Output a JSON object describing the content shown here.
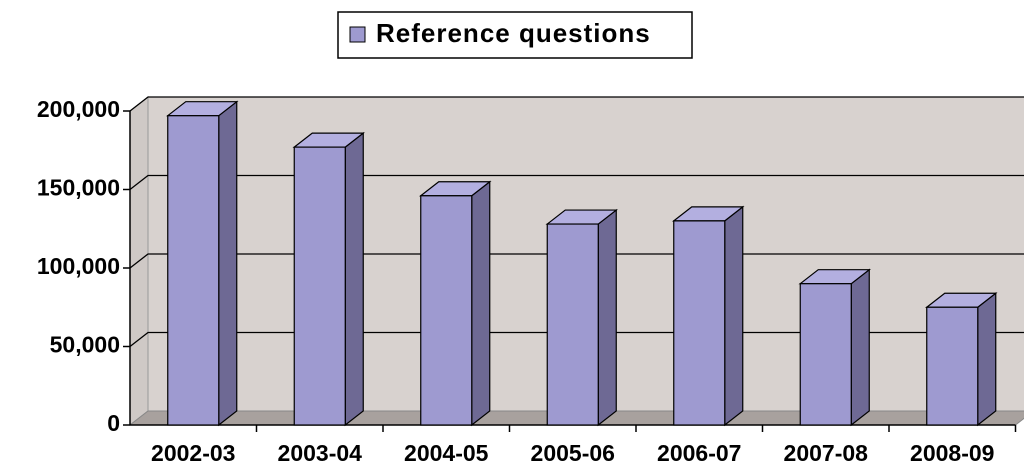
{
  "chart_data": {
    "type": "bar",
    "legend": "Reference questions",
    "categories": [
      "2002-03",
      "2003-04",
      "2004-05",
      "2005-06",
      "2006-07",
      "2007-08",
      "2008-09"
    ],
    "series": [
      {
        "name": "Reference questions",
        "color": "#9e9ad0",
        "values": [
          197000,
          177000,
          146000,
          128000,
          130000,
          90000,
          75000
        ]
      }
    ],
    "ylim": [
      0,
      200000
    ],
    "yticks": [
      0,
      {
        "value": 50000,
        "label": "50,000"
      },
      {
        "value": 100000,
        "label": "100,000"
      },
      {
        "value": 150000,
        "label": "150,000"
      },
      {
        "value": 200000,
        "label": "200,000"
      }
    ],
    "grid": true,
    "legend_position": "top"
  }
}
